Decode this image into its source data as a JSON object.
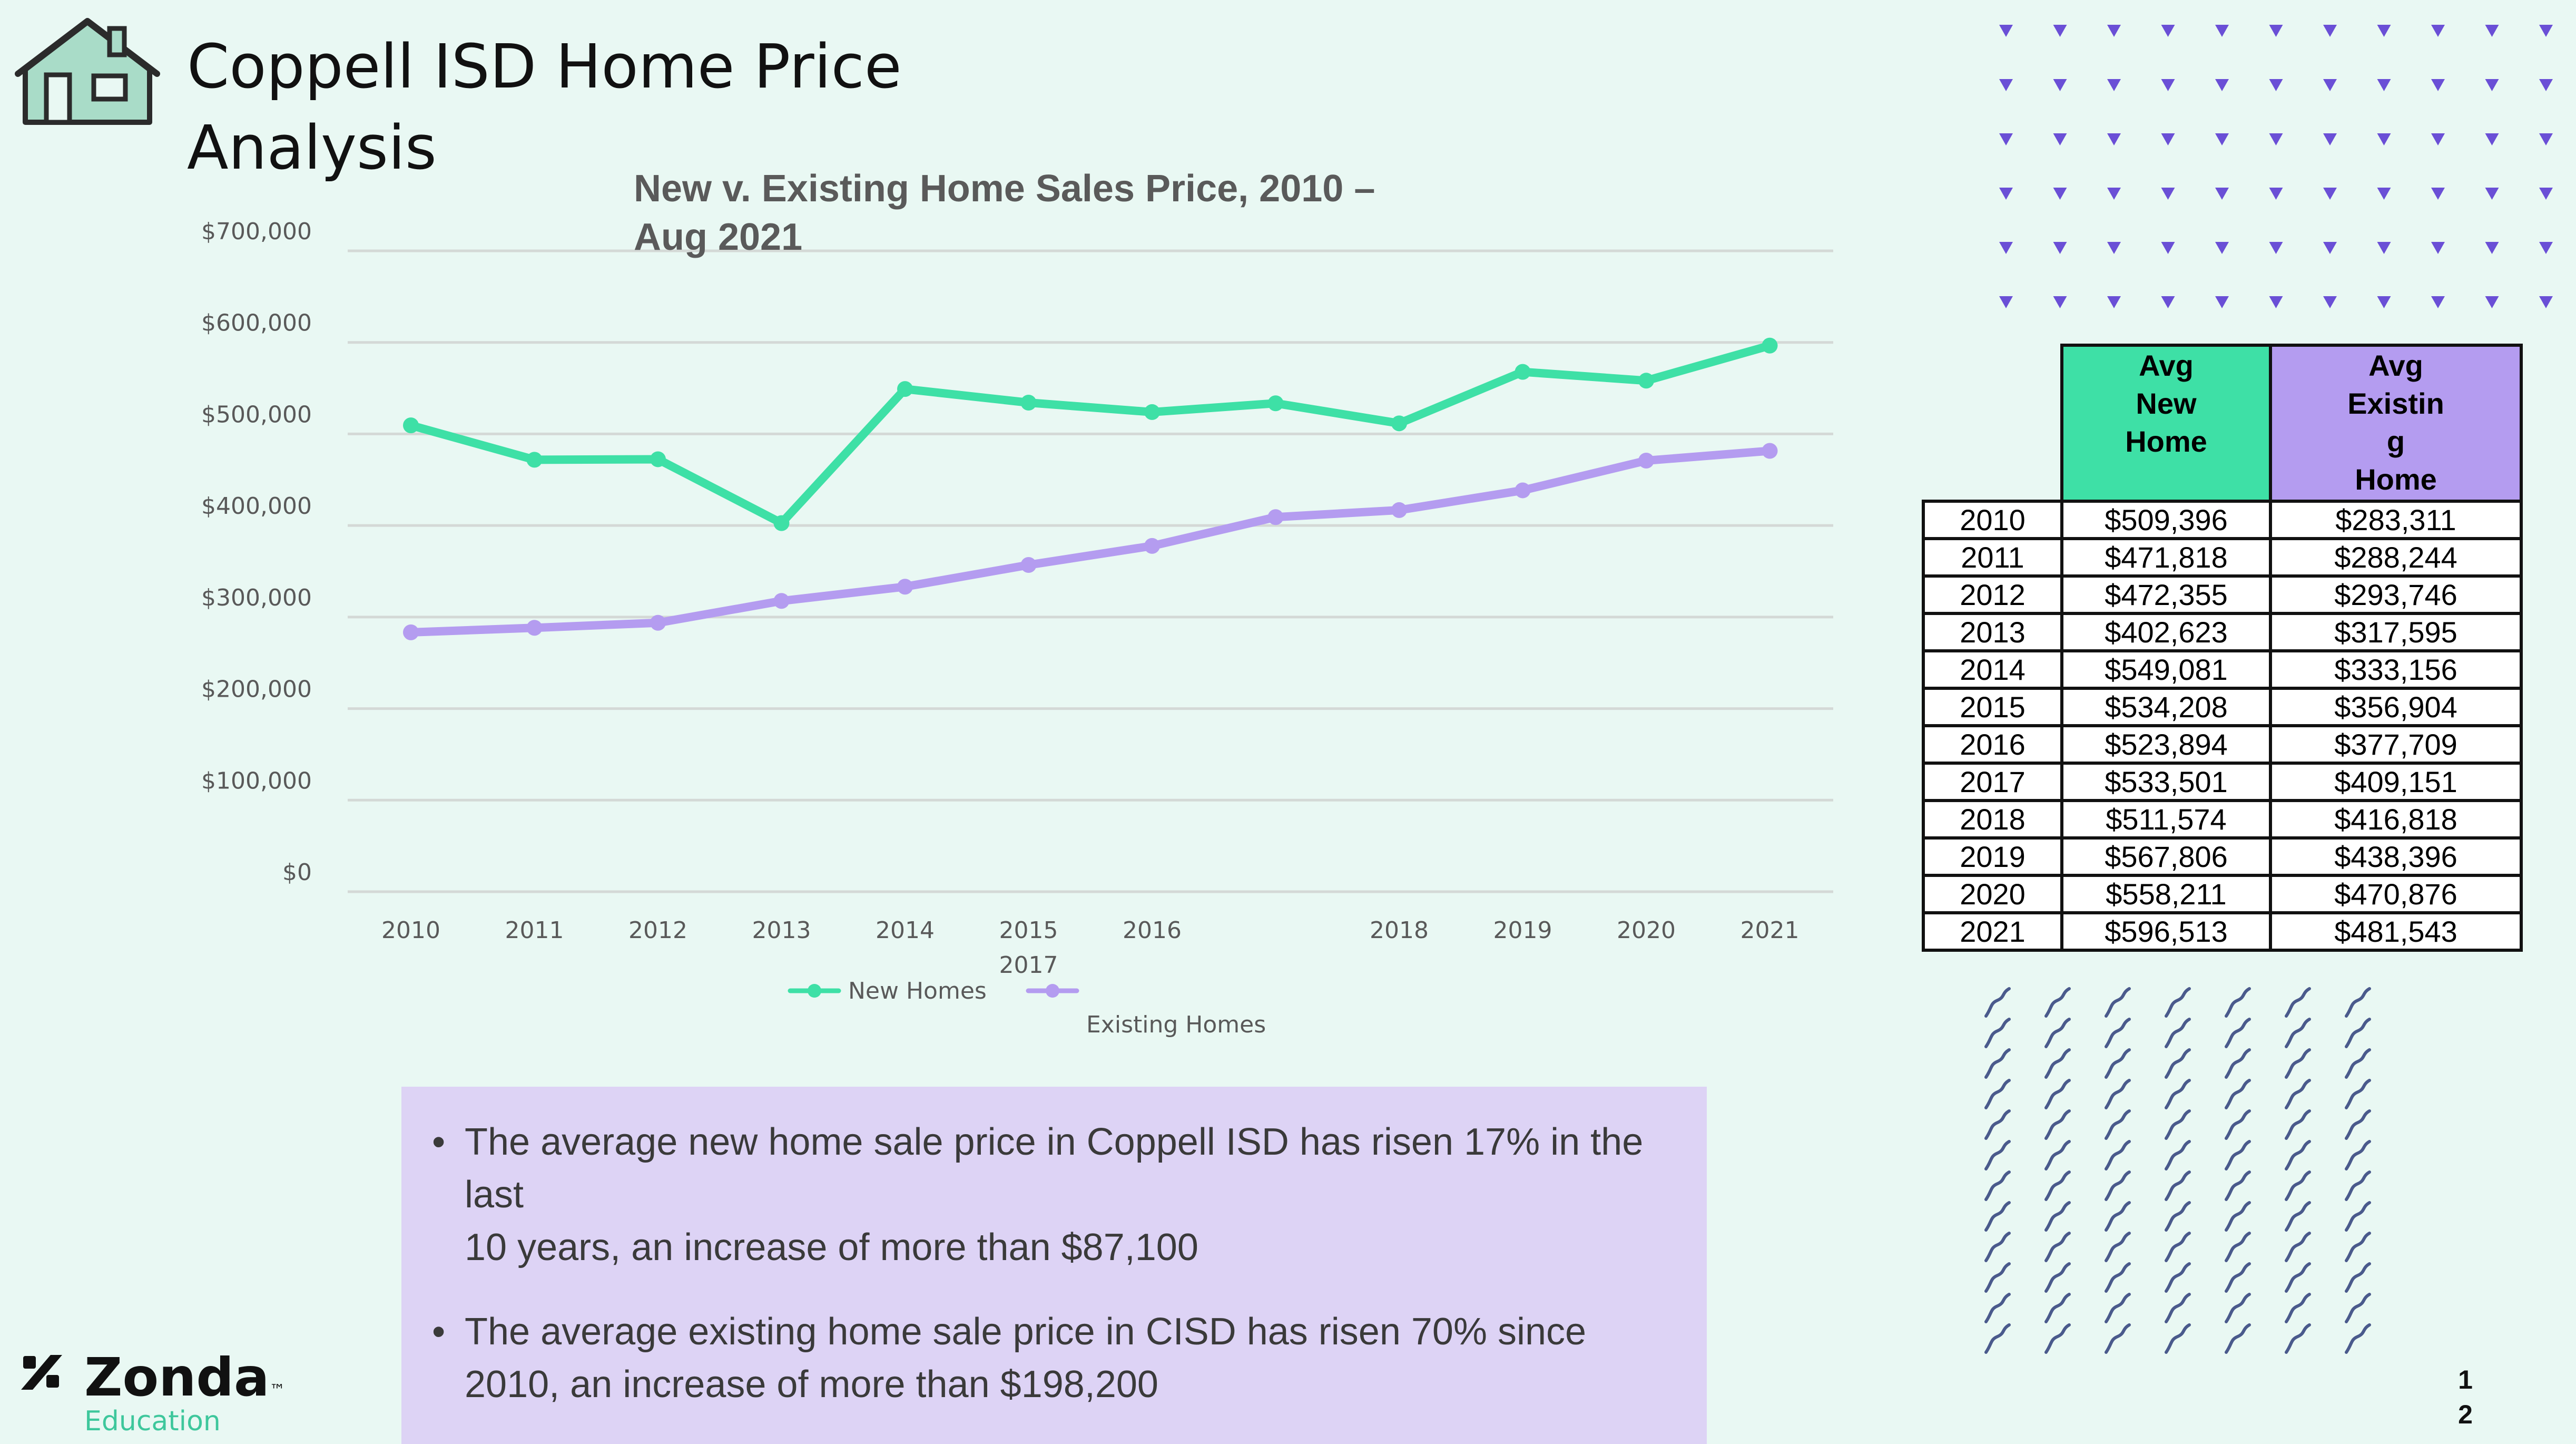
{
  "page": {
    "title_line1": "Coppell ISD Home Price",
    "title_line2": "Analysis",
    "page_number": "12"
  },
  "colors": {
    "background": "#e9f8f3",
    "new_homes": "#3ee0a6",
    "existing_homes": "#b49cf0",
    "house_icon_fill": "#a9dcc8",
    "decor_triangles": "#6a4fd6",
    "decor_waves": "#4a5a8c",
    "bullet_panel": "#ddd3f5",
    "brand_accent": "#3ec79c"
  },
  "icons": {
    "house": "house-icon",
    "logo": "zonda-logo-icon"
  },
  "chart_data": {
    "type": "line",
    "title_line1": "New v. Existing Home Sales Price, 2010 –",
    "title_line2": "Aug 2021",
    "x": [
      2010,
      2011,
      2012,
      2013,
      2014,
      2015,
      2016,
      2017,
      2018,
      2019,
      2020,
      2021
    ],
    "x_tick_labels": [
      "2010",
      "2011",
      "2012",
      "2013",
      "2014",
      "2015",
      "2016",
      "2017",
      "2018",
      "2019",
      "2020",
      "2021"
    ],
    "ylim": [
      0,
      700000
    ],
    "y_ticks": [
      0,
      100000,
      200000,
      300000,
      400000,
      500000,
      600000,
      700000
    ],
    "y_tick_labels": [
      "$0",
      "$100,000",
      "$200,000",
      "$300,000",
      "$400,000",
      "$500,000",
      "$600,000",
      "$700,000"
    ],
    "grid": true,
    "legend_position": "bottom",
    "series": [
      {
        "name": "New Homes",
        "color": "#3ee0a6",
        "values": [
          509396,
          471818,
          472355,
          402623,
          549081,
          534208,
          523894,
          533501,
          511574,
          567806,
          558211,
          596513
        ]
      },
      {
        "name": "Existing Homes",
        "color": "#b49cf0",
        "values": [
          283311,
          288244,
          293746,
          317595,
          333156,
          356904,
          377709,
          409151,
          416818,
          438396,
          470876,
          481543
        ]
      }
    ]
  },
  "table": {
    "header_new": "Avg\nNew\nHome",
    "header_existing": "Avg\nExistin\ng\nHome",
    "rows": [
      [
        "2010",
        "$509,396",
        "$283,311"
      ],
      [
        "2011",
        "$471,818",
        "$288,244"
      ],
      [
        "2012",
        "$472,355",
        "$293,746"
      ],
      [
        "2013",
        "$402,623",
        "$317,595"
      ],
      [
        "2014",
        "$549,081",
        "$333,156"
      ],
      [
        "2015",
        "$534,208",
        "$356,904"
      ],
      [
        "2016",
        "$523,894",
        "$377,709"
      ],
      [
        "2017",
        "$533,501",
        "$409,151"
      ],
      [
        "2018",
        "$511,574",
        "$416,818"
      ],
      [
        "2019",
        "$567,806",
        "$438,396"
      ],
      [
        "2020",
        "$558,211",
        "$470,876"
      ],
      [
        "2021",
        "$596,513",
        "$481,543"
      ]
    ]
  },
  "bullets": [
    {
      "line1": "The average new home sale price in Coppell ISD has risen 17% in the",
      "line2": "last",
      "line3": "10 years, an increase of more than $87,100"
    },
    {
      "line1": "The average existing home sale price in CISD has risen 70% since",
      "line2": "2010,  an increase of more than $198,200",
      "line3": ""
    }
  ],
  "brand": {
    "name": "Zonda",
    "trademark": "™",
    "subtitle": "Education"
  }
}
